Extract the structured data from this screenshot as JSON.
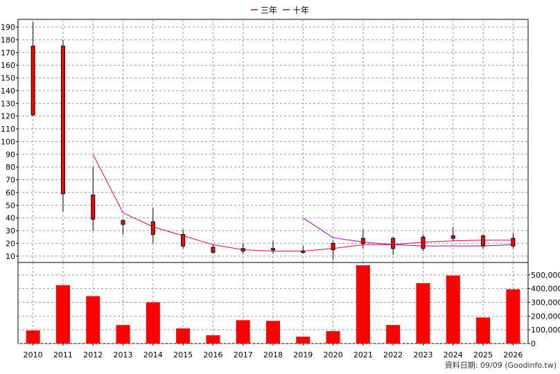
{
  "chart_data": {
    "type": "candlestick-with-volume",
    "categories": [
      "2010",
      "2011",
      "2012",
      "2013",
      "2014",
      "2015",
      "2016",
      "2017",
      "2018",
      "2019",
      "2020",
      "2021",
      "2022",
      "2023",
      "2024",
      "2025",
      "2026"
    ],
    "price_axis": {
      "ticks": [
        10,
        20,
        30,
        40,
        50,
        60,
        70,
        80,
        90,
        100,
        110,
        120,
        130,
        140,
        150,
        160,
        170,
        180,
        190
      ],
      "range": [
        5,
        196
      ]
    },
    "volume_axis": {
      "ticks": [
        0,
        100000,
        200000,
        300000,
        400000,
        500000
      ],
      "tick_labels": [
        "0",
        "100,000",
        "200,000",
        "300,000",
        "400,000",
        "500,000"
      ],
      "range": [
        0,
        590000
      ]
    },
    "candles": [
      {
        "year": "2010",
        "open": 121,
        "high": 194,
        "low": 120,
        "close": 175
      },
      {
        "year": "2011",
        "open": 59,
        "high": 180,
        "low": 45,
        "close": 175
      },
      {
        "year": "2012",
        "open": 39,
        "high": 80,
        "low": 30,
        "close": 58
      },
      {
        "year": "2013",
        "open": 35,
        "high": 39,
        "low": 27,
        "close": 38
      },
      {
        "year": "2014",
        "open": 27,
        "high": 48,
        "low": 20,
        "close": 37
      },
      {
        "year": "2015",
        "open": 18,
        "high": 31,
        "low": 16,
        "close": 27
      },
      {
        "year": "2016",
        "open": 13,
        "high": 19,
        "low": 12,
        "close": 17
      },
      {
        "year": "2017",
        "open": 14,
        "high": 20,
        "low": 12,
        "close": 16
      },
      {
        "year": "2018",
        "open": 15,
        "high": 22,
        "low": 12,
        "close": 16
      },
      {
        "year": "2019",
        "open": 14,
        "high": 18,
        "low": 12,
        "close": 14
      },
      {
        "year": "2020",
        "open": 15,
        "high": 22,
        "low": 7,
        "close": 20
      },
      {
        "year": "2021",
        "open": 20,
        "high": 31,
        "low": 16,
        "close": 24
      },
      {
        "year": "2022",
        "open": 16,
        "high": 25,
        "low": 11,
        "close": 24
      },
      {
        "year": "2023",
        "open": 16,
        "high": 27,
        "low": 14,
        "close": 25
      },
      {
        "year": "2024",
        "open": 24,
        "high": 33,
        "low": 22,
        "close": 26
      },
      {
        "year": "2025",
        "open": 18,
        "high": 27,
        "low": 16,
        "close": 26
      },
      {
        "year": "2026",
        "open": 18,
        "high": 28,
        "low": 16,
        "close": 24
      }
    ],
    "series": [
      {
        "name": "三年",
        "color": "#dd0055",
        "values": [
          null,
          null,
          90,
          44,
          33,
          26,
          19,
          15,
          14,
          14,
          16,
          19,
          19,
          21,
          22,
          22.5,
          22.5
        ]
      },
      {
        "name": "十年",
        "color": "#9900bb",
        "values": [
          null,
          null,
          null,
          null,
          null,
          null,
          null,
          null,
          null,
          40,
          24.5,
          21,
          19,
          18,
          18,
          18,
          19
        ]
      }
    ],
    "volume": [
      95000,
      425000,
      345000,
      135000,
      300000,
      110000,
      60000,
      170000,
      165000,
      50000,
      90000,
      570000,
      135000,
      440000,
      495000,
      190000,
      395000
    ],
    "up_color": "#ff0000",
    "down_color": "#00ff00",
    "bar_color": "#ff0000",
    "grid": true,
    "legend_position": "top-center"
  },
  "footer": "資料日期: 09/09 (Goodinfo.tw)"
}
